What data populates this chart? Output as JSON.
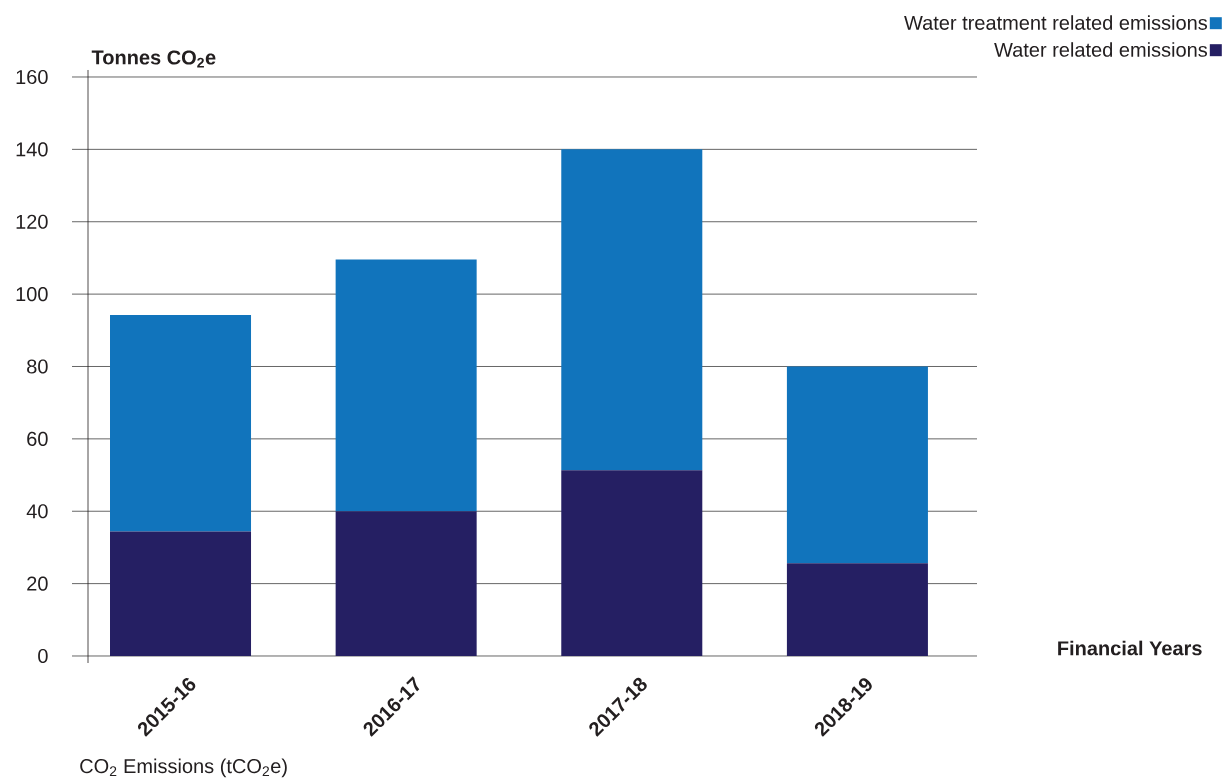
{
  "chart_data": {
    "type": "bar",
    "stacked": true,
    "categories": [
      "2015-16",
      "2016-17",
      "2017-18",
      "2018-19"
    ],
    "series": [
      {
        "name": "Water related emissions",
        "color": "#251f63",
        "values": [
          34.4,
          40,
          51.3,
          25.6
        ]
      },
      {
        "name": "Water treatment related emissions",
        "color": "#1174bc",
        "values": [
          59.8,
          69.6,
          88.7,
          54.4
        ]
      }
    ],
    "ylabel": "Tonnes CO$_{2}$e",
    "xlabel": "Financial Years",
    "annotations": [
      "CO$_{2}$ Emissions (tCO$_{2}$e)"
    ],
    "ylim": [
      0,
      160
    ],
    "yticks": [
      0,
      20,
      40,
      60,
      80,
      100,
      120,
      140,
      160
    ],
    "grid": "y",
    "legend": "top right"
  }
}
